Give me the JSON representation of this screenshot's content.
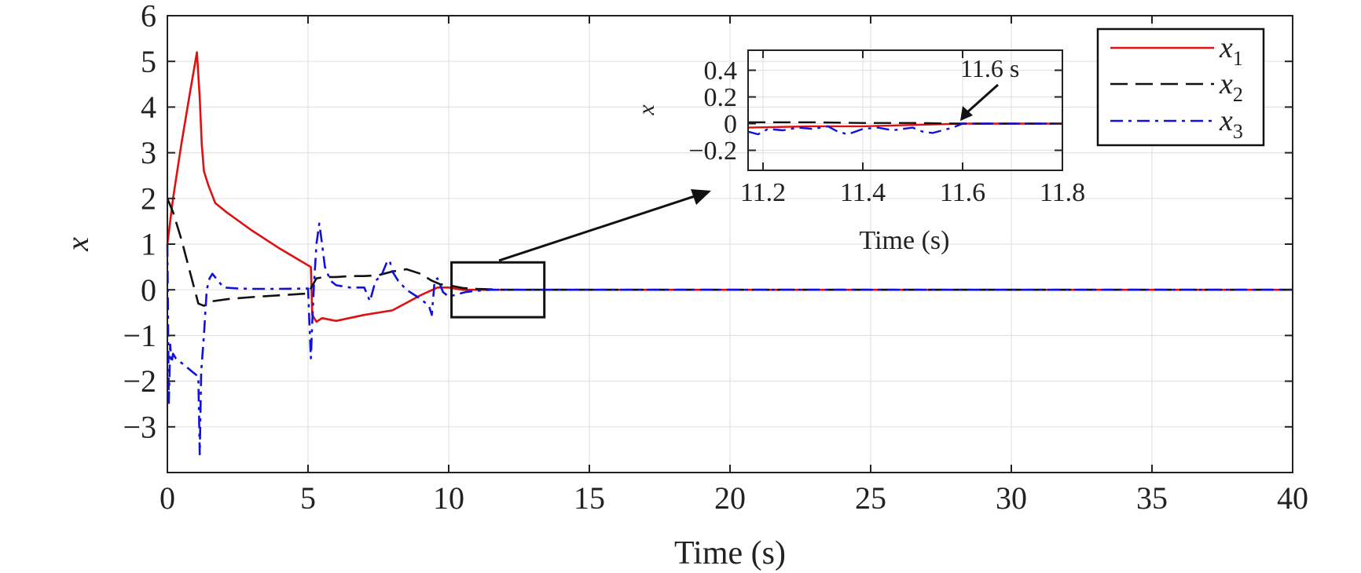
{
  "chart_data": {
    "type": "line",
    "xlabel": "Time (s)",
    "ylabel": "x",
    "xlim": [
      0,
      40
    ],
    "ylim": [
      -4,
      6
    ],
    "xticks": [
      "0",
      "5",
      "10",
      "15",
      "20",
      "25",
      "30",
      "35",
      "40"
    ],
    "yticks": [
      "6",
      "5",
      "4",
      "3",
      "2",
      "1",
      "0",
      "−1",
      "−2",
      "−3"
    ],
    "grid": true,
    "legend_position": "top-right",
    "series": [
      {
        "name_base": "x",
        "name_sub": "1",
        "color": "#dd1111",
        "style": "solid",
        "x": [
          0,
          0.2,
          0.5,
          0.8,
          1.05,
          1.15,
          1.22,
          1.3,
          1.45,
          1.7,
          2.1,
          3.0,
          4.0,
          5.1,
          5.15,
          5.3,
          5.5,
          6.0,
          7.0,
          8.0,
          9.0,
          9.6,
          10.0,
          10.5,
          11.0,
          12.0,
          40
        ],
        "y": [
          1.0,
          2.0,
          3.2,
          4.3,
          5.2,
          4.2,
          3.2,
          2.6,
          2.3,
          1.9,
          1.7,
          1.3,
          0.9,
          0.5,
          -0.55,
          -0.7,
          -0.62,
          -0.68,
          -0.55,
          -0.45,
          -0.12,
          0.05,
          0.05,
          0.0,
          0.0,
          0.0,
          0.0
        ]
      },
      {
        "name_base": "x",
        "name_sub": "2",
        "color": "#111111",
        "style": "dashed",
        "x": [
          0,
          0.2,
          0.5,
          0.8,
          1.1,
          1.3,
          1.6,
          2.2,
          3.0,
          4.0,
          5.0,
          5.3,
          5.6,
          6.0,
          6.5,
          7.0,
          7.5,
          8.0,
          8.5,
          9.0,
          9.4,
          9.7,
          10.0,
          10.5,
          11.0,
          12.0,
          40
        ],
        "y": [
          2.0,
          1.7,
          1.1,
          0.4,
          -0.3,
          -0.35,
          -0.25,
          -0.2,
          -0.16,
          -0.12,
          -0.08,
          0.25,
          0.28,
          0.28,
          0.3,
          0.3,
          0.32,
          0.4,
          0.45,
          0.35,
          0.2,
          0.12,
          0.1,
          0.04,
          0.02,
          0.0,
          0.0
        ]
      },
      {
        "name_base": "x",
        "name_sub": "3",
        "color": "#1111dd",
        "style": "dashdot",
        "x": [
          0,
          0.05,
          0.1,
          0.15,
          0.2,
          0.3,
          0.5,
          0.7,
          0.9,
          1.1,
          1.15,
          1.2,
          1.3,
          1.4,
          1.5,
          1.6,
          1.8,
          2.0,
          2.5,
          3.0,
          4.0,
          5.0,
          5.1,
          5.15,
          5.2,
          5.3,
          5.4,
          5.5,
          5.6,
          5.8,
          6.0,
          6.5,
          7.0,
          7.2,
          7.4,
          7.6,
          7.8,
          7.9,
          8.0,
          8.2,
          8.5,
          9.0,
          9.3,
          9.4,
          9.5,
          9.6,
          9.8,
          10.0,
          10.3,
          10.6,
          11.0,
          11.5,
          12.0,
          40
        ],
        "y": [
          1.0,
          -2.5,
          -1.2,
          -1.6,
          -1.4,
          -1.5,
          -1.6,
          -1.7,
          -1.8,
          -1.9,
          -3.6,
          -1.8,
          -1.0,
          0.0,
          0.25,
          0.35,
          0.2,
          0.05,
          0.03,
          0.02,
          0.02,
          0.03,
          -1.5,
          -0.7,
          0.0,
          1.0,
          1.45,
          1.0,
          0.5,
          0.2,
          0.1,
          0.05,
          0.05,
          -0.25,
          0.2,
          0.3,
          0.6,
          0.65,
          0.4,
          0.2,
          0.0,
          -0.2,
          -0.35,
          -0.55,
          0.2,
          0.25,
          -0.05,
          -0.15,
          -0.1,
          -0.05,
          -0.02,
          0.0,
          0.0,
          0.0
        ]
      }
    ],
    "zoom_box": {
      "x_range": [
        10.1,
        13.4
      ],
      "y_range": [
        -0.6,
        0.6
      ]
    },
    "inset": {
      "xlabel": "Time (s)",
      "ylabel": "x",
      "xlim": [
        11.17,
        11.8
      ],
      "ylim": [
        -0.35,
        0.55
      ],
      "xticks": [
        "11.2",
        "11.4",
        "11.6",
        "11.8"
      ],
      "yticks": [
        "0.4",
        "0.2",
        "0",
        "−0.2"
      ],
      "annotation": "11.6 s",
      "annotation_x": 11.6,
      "annotation_y": 0.0,
      "series": [
        {
          "color": "#dd1111",
          "style": "solid",
          "x": [
            11.17,
            11.3,
            11.4,
            11.5,
            11.6,
            11.7,
            11.8
          ],
          "y": [
            -0.03,
            -0.02,
            -0.02,
            -0.01,
            0.0,
            0.0,
            0.0
          ]
        },
        {
          "color": "#111111",
          "style": "dashed",
          "x": [
            11.17,
            11.3,
            11.4,
            11.5,
            11.6,
            11.7,
            11.8
          ],
          "y": [
            0.01,
            0.01,
            0.005,
            0.005,
            0.0,
            0.0,
            0.0
          ]
        },
        {
          "color": "#1111dd",
          "style": "dashdot",
          "x": [
            11.17,
            11.19,
            11.21,
            11.24,
            11.27,
            11.3,
            11.33,
            11.35,
            11.37,
            11.4,
            11.43,
            11.46,
            11.5,
            11.52,
            11.54,
            11.56,
            11.58,
            11.6,
            11.65,
            11.7,
            11.8
          ],
          "y": [
            -0.06,
            -0.08,
            -0.04,
            -0.05,
            -0.03,
            -0.04,
            -0.02,
            -0.06,
            -0.08,
            -0.04,
            -0.03,
            -0.05,
            -0.03,
            -0.06,
            -0.07,
            -0.05,
            -0.03,
            0.0,
            0.0,
            0.0,
            0.0
          ]
        }
      ]
    }
  }
}
